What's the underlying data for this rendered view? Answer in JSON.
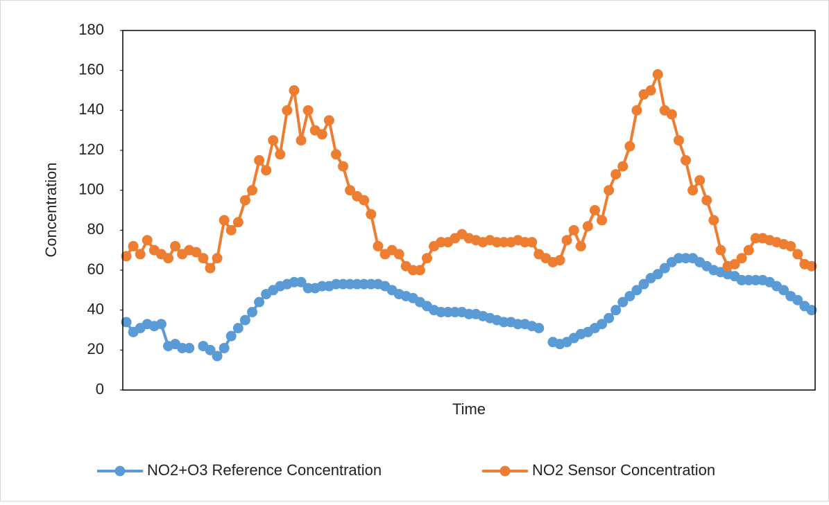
{
  "chart_data": {
    "type": "line",
    "x_label": "Time",
    "y_label": "Concentration",
    "ylim": [
      0,
      180
    ],
    "yticks": [
      0,
      20,
      40,
      60,
      80,
      100,
      120,
      140,
      160,
      180
    ],
    "series": [
      {
        "name": "NO2+O3 Reference Concentration",
        "color": "#5b9bd5",
        "values": [
          34,
          29,
          31,
          33,
          32,
          33,
          22,
          23,
          21,
          21,
          null,
          22,
          20,
          17,
          21,
          27,
          31,
          35,
          39,
          44,
          48,
          50,
          52,
          53,
          54,
          54,
          51,
          51,
          52,
          52,
          53,
          53,
          53,
          53,
          53,
          53,
          53,
          52,
          50,
          48,
          47,
          46,
          44,
          42,
          40,
          39,
          39,
          39,
          39,
          38,
          38,
          37,
          36,
          35,
          34,
          34,
          33,
          33,
          32,
          31,
          null,
          24,
          23,
          24,
          26,
          28,
          29,
          31,
          33,
          36,
          40,
          44,
          47,
          50,
          53,
          56,
          58,
          61,
          64,
          66,
          66,
          66,
          64,
          62,
          60,
          59,
          58,
          57,
          55,
          55,
          55,
          55,
          54,
          52,
          50,
          47,
          45,
          42,
          40
        ]
      },
      {
        "name": "NO2 Sensor Concentration",
        "color": "#ed7d31",
        "values": [
          67,
          72,
          68,
          75,
          70,
          68,
          66,
          72,
          68,
          70,
          69,
          66,
          61,
          66,
          85,
          80,
          84,
          95,
          100,
          115,
          110,
          125,
          118,
          140,
          150,
          125,
          140,
          130,
          128,
          135,
          118,
          112,
          100,
          97,
          95,
          88,
          72,
          68,
          70,
          68,
          62,
          60,
          60,
          66,
          72,
          74,
          74,
          76,
          78,
          76,
          75,
          74,
          75,
          74,
          74,
          74,
          75,
          74,
          74,
          68,
          66,
          64,
          65,
          75,
          80,
          72,
          82,
          90,
          85,
          100,
          108,
          112,
          122,
          140,
          148,
          150,
          158,
          140,
          138,
          125,
          115,
          100,
          105,
          95,
          85,
          70,
          62,
          63,
          66,
          70,
          76,
          76,
          75,
          74,
          73,
          72,
          68,
          63,
          62
        ]
      }
    ]
  }
}
